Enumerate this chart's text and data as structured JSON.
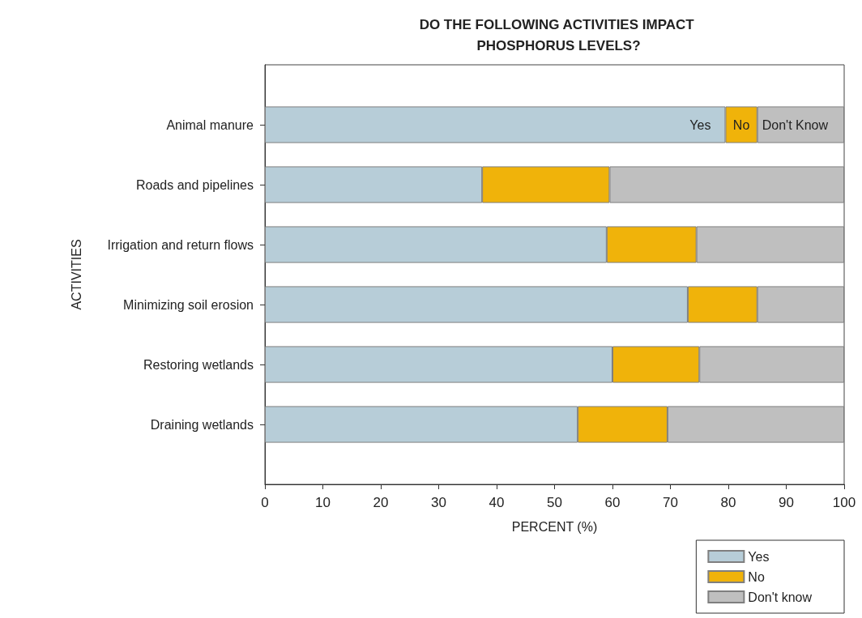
{
  "chart_data": {
    "type": "bar",
    "orientation": "horizontal",
    "stacked": true,
    "title": "DO THE FOLLOWING ACTIVITIES IMPACT PHOSPHORUS LEVELS?",
    "xlabel": "PERCENT (%)",
    "ylabel": "ACTIVITIES",
    "categories": [
      "Animal manure",
      "Roads and pipelines",
      "Irrigation and return flows",
      "Minimizing soil erosion",
      "Restoring wetlands",
      "Draining wetlands"
    ],
    "series": [
      {
        "name": "Yes",
        "color": "#b7cdd8",
        "values": [
          79.5,
          37.5,
          59,
          73,
          60,
          54
        ]
      },
      {
        "name": "No",
        "color": "#f0b30a",
        "values": [
          5.5,
          22,
          15.5,
          12,
          15,
          15.5
        ]
      },
      {
        "name": "Don't know",
        "color": "#bfbfbf",
        "values": [
          15,
          40.5,
          25.5,
          15,
          25,
          30.5
        ]
      }
    ],
    "xlim": [
      0,
      100
    ],
    "xticks": [
      0,
      10,
      20,
      30,
      40,
      50,
      60,
      70,
      80,
      90,
      100
    ],
    "grid": false,
    "legend": "bottom right",
    "annotations": [
      "Yes",
      "No",
      "Don't Know"
    ]
  }
}
